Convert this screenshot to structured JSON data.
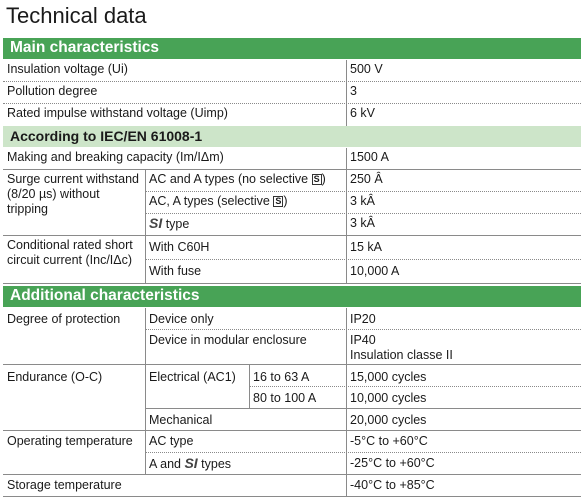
{
  "title": "Technical data",
  "main": {
    "heading": "Main characteristics",
    "rows": [
      {
        "label": "Insulation voltage (Ui)",
        "value": "500 V"
      },
      {
        "label": "Pollution degree",
        "value": "3"
      },
      {
        "label": "Rated impulse withstand voltage (Uimp)",
        "value": "6 kV"
      }
    ]
  },
  "iec": {
    "heading": "According to IEC/EN 61008-1",
    "making": {
      "label": "Making and breaking capacity (Im/IΔm)",
      "value": "1500 A"
    },
    "surge": {
      "label": "Surge current withstand (8/20 µs) without tripping",
      "rows": [
        {
          "sub": "AC and A types (no selective",
          "sub_suffix": ")",
          "symbol": "S",
          "value": "250 Â"
        },
        {
          "sub": "AC, A types (selective",
          "sub_suffix": ")",
          "symbol": "S",
          "value": "3 kÂ"
        },
        {
          "si": "SI",
          "sub": " type",
          "value": "3 kÂ"
        }
      ]
    },
    "conditional": {
      "label": "Conditional rated short circuit current (Inc/IΔc)",
      "rows": [
        {
          "sub": "With C60H",
          "value": "15 kA"
        },
        {
          "sub": "With fuse",
          "value": "10,000 A"
        }
      ]
    }
  },
  "additional": {
    "heading": "Additional characteristics",
    "protection": {
      "label": "Degree of protection",
      "rows": [
        {
          "sub": "Device only",
          "value": "IP20"
        },
        {
          "sub": "Device in modular enclosure",
          "value": "IP40",
          "value2": "Insulation classe II"
        }
      ]
    },
    "endurance": {
      "label": "Endurance (O-C)",
      "electrical": "Electrical (AC1)",
      "rows": [
        {
          "range": "16 to 63 A",
          "value": "15,000 cycles"
        },
        {
          "range": "80 to 100 A",
          "value": "10,000 cycles"
        }
      ],
      "mechanical": {
        "sub": "Mechanical",
        "value": "20,000 cycles"
      }
    },
    "operating": {
      "label": "Operating temperature",
      "rows": [
        {
          "sub": "AC type",
          "value": "-5°C to +60°C"
        },
        {
          "sub_prefix": "A and ",
          "si": "SI",
          "sub": " types",
          "value": "-25°C to +60°C"
        }
      ]
    },
    "storage": {
      "label": "Storage temperature",
      "value": "-40°C to +85°C"
    }
  }
}
